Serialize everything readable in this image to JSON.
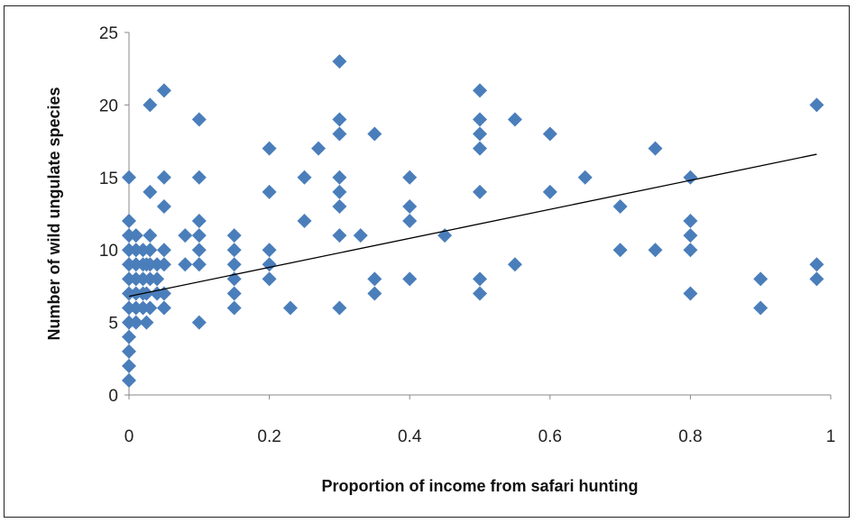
{
  "chart_data": {
    "type": "scatter",
    "xlabel": "Proportion of income from safari hunting",
    "ylabel": "Number of wild ungulate species",
    "xlim": [
      0,
      1
    ],
    "ylim": [
      0,
      25
    ],
    "x_ticks": [
      "0",
      "0.2",
      "0.4",
      "0.6",
      "0.8",
      "1"
    ],
    "y_ticks": [
      "0",
      "5",
      "10",
      "15",
      "20",
      "25"
    ],
    "grid": false,
    "legend": "none",
    "marker_color": "#4a7ebb",
    "trendline": {
      "type": "linear",
      "x": [
        0,
        0.98
      ],
      "y": [
        6.8,
        16.6
      ],
      "color": "#000000"
    },
    "points": [
      [
        0,
        1
      ],
      [
        0,
        2
      ],
      [
        0,
        3
      ],
      [
        0,
        4
      ],
      [
        0,
        5
      ],
      [
        0,
        6
      ],
      [
        0,
        7
      ],
      [
        0,
        8
      ],
      [
        0,
        9
      ],
      [
        0,
        10
      ],
      [
        0,
        11
      ],
      [
        0,
        12
      ],
      [
        0,
        15
      ],
      [
        0.01,
        5
      ],
      [
        0.01,
        6
      ],
      [
        0.01,
        7
      ],
      [
        0.01,
        8
      ],
      [
        0.01,
        9
      ],
      [
        0.01,
        10
      ],
      [
        0.01,
        11
      ],
      [
        0.02,
        6
      ],
      [
        0.02,
        7
      ],
      [
        0.02,
        8
      ],
      [
        0.02,
        9
      ],
      [
        0.02,
        10
      ],
      [
        0.025,
        5
      ],
      [
        0.025,
        7
      ],
      [
        0.025,
        9
      ],
      [
        0.03,
        6
      ],
      [
        0.03,
        8
      ],
      [
        0.03,
        9
      ],
      [
        0.03,
        10
      ],
      [
        0.03,
        11
      ],
      [
        0.03,
        14
      ],
      [
        0.03,
        20
      ],
      [
        0.04,
        7
      ],
      [
        0.04,
        8
      ],
      [
        0.04,
        9
      ],
      [
        0.05,
        6
      ],
      [
        0.05,
        7
      ],
      [
        0.05,
        9
      ],
      [
        0.05,
        10
      ],
      [
        0.05,
        13
      ],
      [
        0.05,
        15
      ],
      [
        0.05,
        21
      ],
      [
        0.08,
        9
      ],
      [
        0.08,
        11
      ],
      [
        0.1,
        5
      ],
      [
        0.1,
        9
      ],
      [
        0.1,
        10
      ],
      [
        0.1,
        11
      ],
      [
        0.1,
        12
      ],
      [
        0.1,
        15
      ],
      [
        0.1,
        19
      ],
      [
        0.15,
        6
      ],
      [
        0.15,
        7
      ],
      [
        0.15,
        8
      ],
      [
        0.15,
        9
      ],
      [
        0.15,
        10
      ],
      [
        0.15,
        11
      ],
      [
        0.2,
        8
      ],
      [
        0.2,
        9
      ],
      [
        0.2,
        10
      ],
      [
        0.2,
        14
      ],
      [
        0.2,
        17
      ],
      [
        0.23,
        6
      ],
      [
        0.25,
        12
      ],
      [
        0.25,
        15
      ],
      [
        0.27,
        17
      ],
      [
        0.3,
        6
      ],
      [
        0.3,
        11
      ],
      [
        0.3,
        13
      ],
      [
        0.3,
        14
      ],
      [
        0.3,
        15
      ],
      [
        0.3,
        18
      ],
      [
        0.3,
        19
      ],
      [
        0.3,
        23
      ],
      [
        0.33,
        11
      ],
      [
        0.35,
        7
      ],
      [
        0.35,
        8
      ],
      [
        0.35,
        18
      ],
      [
        0.4,
        8
      ],
      [
        0.4,
        12
      ],
      [
        0.4,
        13
      ],
      [
        0.4,
        15
      ],
      [
        0.45,
        11
      ],
      [
        0.5,
        7
      ],
      [
        0.5,
        8
      ],
      [
        0.5,
        14
      ],
      [
        0.5,
        17
      ],
      [
        0.5,
        18
      ],
      [
        0.5,
        19
      ],
      [
        0.5,
        21
      ],
      [
        0.55,
        9
      ],
      [
        0.55,
        19
      ],
      [
        0.6,
        14
      ],
      [
        0.6,
        18
      ],
      [
        0.65,
        15
      ],
      [
        0.7,
        10
      ],
      [
        0.7,
        13
      ],
      [
        0.75,
        10
      ],
      [
        0.75,
        17
      ],
      [
        0.8,
        7
      ],
      [
        0.8,
        10
      ],
      [
        0.8,
        11
      ],
      [
        0.8,
        12
      ],
      [
        0.8,
        15
      ],
      [
        0.9,
        6
      ],
      [
        0.9,
        8
      ],
      [
        0.98,
        8
      ],
      [
        0.98,
        9
      ],
      [
        0.98,
        20
      ]
    ]
  }
}
